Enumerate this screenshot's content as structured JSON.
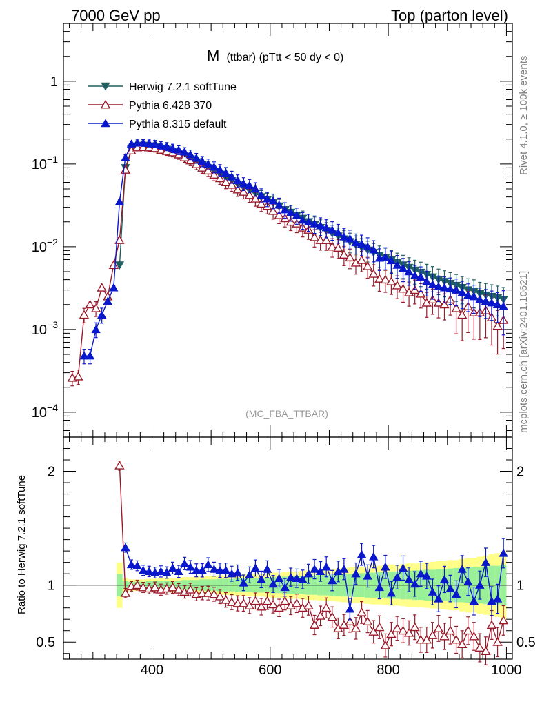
{
  "header": {
    "left_label": "7000 GeV pp",
    "right_label": "Top (parton level)"
  },
  "side_labels": {
    "rivet": "Rivet 4.1.0, ≥ 100k events",
    "mcplots": "mcplots.cern.ch [arXiv:2401.10621]"
  },
  "chart_data": [
    {
      "type": "line",
      "panel": "main",
      "title_main": "M",
      "title_detail": "(ttbar) (pTtt < 50 dy < 0)",
      "watermark": "(MC_FBA_TTBAR)",
      "xlabel": "",
      "ylabel": "",
      "yscale": "log",
      "xlim": [
        250,
        1010
      ],
      "ylim": [
        5e-05,
        5
      ],
      "x_ticks": [
        400,
        600,
        800,
        1000
      ],
      "y_ticks": [
        {
          "value": 1,
          "base": "1",
          "exp": ""
        },
        {
          "value": 0.1,
          "base": "10",
          "exp": "−1"
        },
        {
          "value": 0.01,
          "base": "10",
          "exp": "−2"
        },
        {
          "value": 0.001,
          "base": "10",
          "exp": "−3"
        },
        {
          "value": 0.0001,
          "base": "10",
          "exp": "−4"
        }
      ],
      "legend_position": "top-left",
      "series": [
        {
          "name": "Herwig 7.2.1 softTune",
          "color": "#1f5f5f",
          "marker": "triangle-down-filled",
          "x": [
            345,
            355,
            365,
            375,
            385,
            395,
            405,
            415,
            425,
            435,
            445,
            455,
            465,
            475,
            485,
            495,
            505,
            515,
            525,
            535,
            545,
            555,
            565,
            575,
            585,
            595,
            605,
            615,
            625,
            635,
            645,
            655,
            665,
            675,
            685,
            695,
            705,
            715,
            725,
            735,
            745,
            755,
            765,
            775,
            785,
            795,
            805,
            815,
            825,
            835,
            845,
            855,
            865,
            875,
            885,
            895,
            905,
            915,
            925,
            935,
            945,
            955,
            965,
            975,
            985,
            995
          ],
          "y": [
            0.006,
            0.09,
            0.15,
            0.165,
            0.168,
            0.165,
            0.16,
            0.155,
            0.15,
            0.14,
            0.132,
            0.124,
            0.115,
            0.106,
            0.098,
            0.09,
            0.082,
            0.075,
            0.069,
            0.063,
            0.057,
            0.052,
            0.048,
            0.044,
            0.04,
            0.037,
            0.034,
            0.031,
            0.028,
            0.026,
            0.024,
            0.022,
            0.02,
            0.0185,
            0.017,
            0.0157,
            0.0145,
            0.0134,
            0.0124,
            0.0115,
            0.0106,
            0.0098,
            0.0091,
            0.0085,
            0.0079,
            0.0074,
            0.0069,
            0.0064,
            0.006,
            0.0056,
            0.0052,
            0.0049,
            0.0046,
            0.0043,
            0.004,
            0.0038,
            0.0036,
            0.0034,
            0.0032,
            0.003,
            0.0029,
            0.0027,
            0.0026,
            0.0025,
            0.0024,
            0.0023
          ]
        },
        {
          "name": "Pythia 6.428 370",
          "color": "#9a1a2a",
          "marker": "triangle-up-open",
          "x": [
            265,
            275,
            285,
            295,
            305,
            315,
            325,
            335,
            345,
            355,
            365,
            375,
            385,
            395,
            405,
            415,
            425,
            435,
            445,
            455,
            465,
            475,
            485,
            495,
            505,
            515,
            525,
            535,
            545,
            555,
            565,
            575,
            585,
            595,
            605,
            615,
            625,
            635,
            645,
            655,
            665,
            675,
            685,
            695,
            705,
            715,
            725,
            735,
            745,
            755,
            765,
            775,
            785,
            795,
            805,
            815,
            825,
            835,
            845,
            855,
            865,
            875,
            885,
            895,
            905,
            915,
            925,
            935,
            945,
            955,
            965,
            975,
            985,
            995
          ],
          "y": [
            0.00026,
            0.00027,
            0.0015,
            0.002,
            0.0018,
            0.0032,
            0.0025,
            0.006,
            0.012,
            0.085,
            0.145,
            0.158,
            0.16,
            0.158,
            0.155,
            0.148,
            0.143,
            0.138,
            0.13,
            0.12,
            0.11,
            0.099,
            0.09,
            0.083,
            0.074,
            0.067,
            0.06,
            0.056,
            0.049,
            0.046,
            0.042,
            0.038,
            0.033,
            0.031,
            0.027,
            0.024,
            0.022,
            0.02,
            0.019,
            0.017,
            0.016,
            0.013,
            0.012,
            0.012,
            0.01,
            0.0097,
            0.008,
            0.0074,
            0.0064,
            0.0069,
            0.0058,
            0.0047,
            0.0041,
            0.004,
            0.0038,
            0.0034,
            0.0031,
            0.0028,
            0.003,
            0.0027,
            0.0021,
            0.0023,
            0.0021,
            0.002,
            0.0023,
            0.0018,
            0.0015,
            0.0019,
            0.0016,
            0.0016,
            0.0017,
            0.0014,
            0.0011,
            0.0013
          ]
        },
        {
          "name": "Pythia 8.315 default",
          "color": "#0a18cc",
          "marker": "triangle-up-filled",
          "x": [
            285,
            295,
            305,
            315,
            325,
            335,
            345,
            355,
            365,
            375,
            385,
            395,
            405,
            415,
            425,
            435,
            445,
            455,
            465,
            475,
            485,
            495,
            505,
            515,
            525,
            535,
            545,
            555,
            565,
            575,
            585,
            595,
            605,
            615,
            625,
            635,
            645,
            655,
            665,
            675,
            685,
            695,
            705,
            715,
            725,
            735,
            745,
            755,
            765,
            775,
            785,
            795,
            805,
            815,
            825,
            835,
            845,
            855,
            865,
            875,
            885,
            895,
            905,
            915,
            925,
            935,
            945,
            955,
            965,
            975,
            985,
            995
          ],
          "y": [
            0.00048,
            0.00048,
            0.001,
            0.0015,
            0.0022,
            0.0032,
            0.035,
            0.12,
            0.175,
            0.18,
            0.18,
            0.178,
            0.175,
            0.168,
            0.163,
            0.155,
            0.148,
            0.14,
            0.13,
            0.118,
            0.108,
            0.1,
            0.092,
            0.085,
            0.078,
            0.07,
            0.063,
            0.058,
            0.055,
            0.05,
            0.042,
            0.038,
            0.036,
            0.032,
            0.028,
            0.026,
            0.024,
            0.021,
            0.02,
            0.019,
            0.018,
            0.017,
            0.016,
            0.0148,
            0.0132,
            0.0125,
            0.0112,
            0.0108,
            0.01,
            0.0092,
            0.0073,
            0.0075,
            0.0068,
            0.006,
            0.0055,
            0.005,
            0.0045,
            0.0043,
            0.0038,
            0.0035,
            0.0033,
            0.0032,
            0.0031,
            0.003,
            0.0028,
            0.0026,
            0.0025,
            0.0023,
            0.0022,
            0.0021,
            0.002,
            0.0019
          ]
        }
      ]
    },
    {
      "type": "line",
      "panel": "ratio",
      "xlabel": "",
      "ylabel": "Ratio to Herwig 7.2.1 softTune",
      "yscale": "linear",
      "xlim": [
        250,
        1010
      ],
      "ylim": [
        0.35,
        2.3
      ],
      "x_ticks": [
        400,
        600,
        800,
        1000
      ],
      "y_ticks": [
        {
          "value": 0.5,
          "label": "0.5"
        },
        {
          "value": 1,
          "label": "1"
        },
        {
          "value": 2,
          "label": "2"
        }
      ],
      "reference_line": 1,
      "uncertainty_bands": {
        "x_edges": [
          340,
          350,
          360,
          370,
          380,
          390,
          400,
          410,
          420,
          430,
          440,
          450,
          460,
          470,
          480,
          490,
          500,
          510,
          520,
          530,
          540,
          550,
          560,
          570,
          580,
          590,
          600,
          610,
          620,
          630,
          640,
          650,
          660,
          670,
          680,
          690,
          700,
          710,
          720,
          730,
          740,
          750,
          760,
          770,
          780,
          790,
          800,
          810,
          820,
          830,
          840,
          850,
          860,
          870,
          880,
          890,
          900,
          910,
          920,
          930,
          940,
          950,
          960,
          970,
          980,
          990,
          1000
        ],
        "yellow_half_width": [
          0.2,
          0.06,
          0.05,
          0.05,
          0.05,
          0.055,
          0.055,
          0.06,
          0.06,
          0.065,
          0.065,
          0.07,
          0.07,
          0.075,
          0.075,
          0.08,
          0.08,
          0.085,
          0.085,
          0.09,
          0.09,
          0.095,
          0.095,
          0.1,
          0.1,
          0.105,
          0.11,
          0.11,
          0.115,
          0.12,
          0.12,
          0.125,
          0.13,
          0.13,
          0.135,
          0.14,
          0.14,
          0.145,
          0.15,
          0.155,
          0.16,
          0.16,
          0.165,
          0.17,
          0.17,
          0.175,
          0.18,
          0.18,
          0.185,
          0.19,
          0.19,
          0.195,
          0.2,
          0.205,
          0.21,
          0.21,
          0.22,
          0.22,
          0.23,
          0.24,
          0.24,
          0.25,
          0.26,
          0.27,
          0.28,
          0.3
        ],
        "green_half_width": [
          0.1,
          0.035,
          0.03,
          0.03,
          0.03,
          0.035,
          0.035,
          0.035,
          0.04,
          0.04,
          0.04,
          0.045,
          0.045,
          0.045,
          0.05,
          0.05,
          0.05,
          0.055,
          0.055,
          0.055,
          0.06,
          0.06,
          0.06,
          0.065,
          0.065,
          0.065,
          0.07,
          0.07,
          0.075,
          0.075,
          0.08,
          0.08,
          0.085,
          0.085,
          0.09,
          0.09,
          0.095,
          0.095,
          0.1,
          0.1,
          0.105,
          0.105,
          0.11,
          0.11,
          0.115,
          0.115,
          0.12,
          0.12,
          0.125,
          0.125,
          0.13,
          0.13,
          0.135,
          0.135,
          0.14,
          0.14,
          0.145,
          0.15,
          0.15,
          0.155,
          0.16,
          0.16,
          0.165,
          0.17,
          0.17,
          0.18
        ]
      },
      "series": [
        {
          "name": "Pythia 6.428 370",
          "color": "#9a1a2a",
          "marker": "triangle-up-open",
          "x": [
            345,
            355,
            365,
            375,
            385,
            395,
            405,
            415,
            425,
            435,
            445,
            455,
            465,
            475,
            485,
            495,
            505,
            515,
            525,
            535,
            545,
            555,
            565,
            575,
            585,
            595,
            605,
            615,
            625,
            635,
            645,
            655,
            665,
            675,
            685,
            695,
            705,
            715,
            725,
            735,
            745,
            755,
            765,
            775,
            785,
            795,
            805,
            815,
            825,
            835,
            845,
            855,
            865,
            875,
            885,
            895,
            905,
            915,
            925,
            935,
            945,
            955,
            965,
            975,
            985,
            995
          ],
          "y": [
            2.05,
            0.93,
            0.99,
            1.0,
            0.98,
            0.97,
            0.98,
            0.96,
            0.97,
            0.98,
            0.96,
            0.94,
            0.96,
            0.92,
            0.93,
            0.93,
            0.92,
            0.9,
            0.87,
            0.85,
            0.84,
            0.84,
            0.82,
            0.86,
            0.81,
            0.86,
            0.83,
            0.8,
            0.86,
            0.82,
            0.84,
            0.8,
            0.82,
            0.65,
            0.73,
            0.8,
            0.72,
            0.62,
            0.65,
            0.68,
            0.62,
            0.76,
            0.68,
            0.59,
            0.63,
            0.47,
            0.57,
            0.62,
            0.6,
            0.58,
            0.63,
            0.52,
            0.52,
            0.56,
            0.62,
            0.55,
            0.6,
            0.52,
            0.48,
            0.6,
            0.55,
            0.45,
            0.42,
            0.65,
            0.5,
            0.69
          ]
        },
        {
          "name": "Pythia 8.315 default",
          "color": "#0a18cc",
          "marker": "triangle-up-filled",
          "x": [
            355,
            365,
            375,
            385,
            395,
            405,
            415,
            425,
            435,
            445,
            455,
            465,
            475,
            485,
            495,
            505,
            515,
            525,
            535,
            545,
            555,
            565,
            575,
            585,
            595,
            605,
            615,
            625,
            635,
            645,
            655,
            665,
            675,
            685,
            695,
            705,
            715,
            725,
            735,
            745,
            755,
            765,
            775,
            785,
            795,
            805,
            815,
            825,
            835,
            845,
            855,
            865,
            875,
            885,
            895,
            905,
            915,
            925,
            935,
            945,
            955,
            965,
            975,
            985,
            995
          ],
          "y": [
            1.33,
            1.18,
            1.17,
            1.13,
            1.12,
            1.11,
            1.12,
            1.11,
            1.15,
            1.12,
            1.19,
            1.16,
            1.13,
            1.13,
            1.18,
            1.14,
            1.13,
            1.13,
            1.1,
            1.11,
            1.02,
            1.09,
            1.15,
            1.05,
            1.14,
            1.01,
            1.06,
            0.98,
            1.07,
            1.06,
            1.05,
            1.1,
            1.14,
            1.12,
            1.16,
            1.04,
            1.12,
            1.14,
            0.79,
            1.1,
            1.27,
            1.08,
            1.25,
            0.98,
            1.16,
            0.93,
            1.07,
            1.15,
            1.05,
            1.01,
            1.1,
            1.08,
            0.94,
            0.88,
            1.05,
            0.97,
            0.92,
            1.14,
            1.03,
            0.86,
            1.0,
            1.2,
            0.86,
            0.88,
            1.28
          ]
        }
      ]
    }
  ]
}
